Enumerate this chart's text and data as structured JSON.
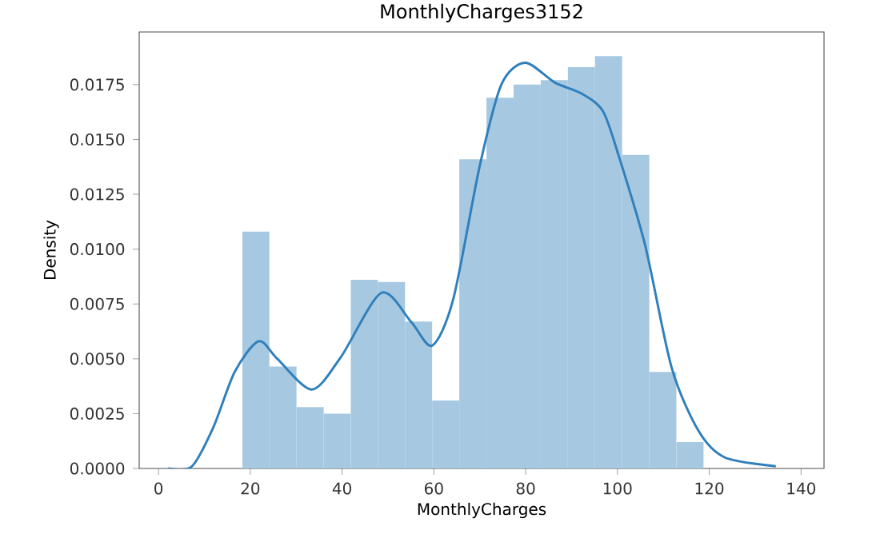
{
  "chart_data": {
    "type": "histogram",
    "title": "MonthlyCharges3152",
    "xlabel": "MonthlyCharges",
    "ylabel": "Density",
    "xlim": [
      -4.2,
      145
    ],
    "xticks": [
      0,
      20,
      40,
      60,
      80,
      100,
      120,
      140
    ],
    "ylim": [
      0,
      0.0199
    ],
    "yticks": [
      {
        "value": 0,
        "label": "0.0000"
      },
      {
        "value": 0.0025,
        "label": "0.0025"
      },
      {
        "value": 0.005,
        "label": "0.0050"
      },
      {
        "value": 0.0075,
        "label": "0.0075"
      },
      {
        "value": 0.01,
        "label": "0.0100"
      },
      {
        "value": 0.0125,
        "label": "0.0125"
      },
      {
        "value": 0.015,
        "label": "0.0150"
      },
      {
        "value": 0.0175,
        "label": "0.0175"
      }
    ],
    "series": [
      {
        "color": "#a6c8e0",
        "bins": [
          18.25,
          24.16,
          30.07,
          35.99,
          41.9,
          47.81,
          53.72,
          59.63,
          65.54,
          71.46,
          77.37,
          83.28,
          89.19,
          95.1,
          101.01,
          106.93,
          112.84,
          118.75
        ],
        "values": [
          0.0108,
          0.00465,
          0.0028,
          0.0025,
          0.0086,
          0.0085,
          0.0067,
          0.0031,
          0.0141,
          0.0169,
          0.0175,
          0.0177,
          0.0183,
          0.0188,
          0.0143,
          0.0044,
          0.0012
        ]
      },
      {
        "type": "line",
        "color": "#2f7fbc",
        "x": [
          2.1,
          7.3,
          12,
          16.6,
          21.8,
          25.9,
          33.4,
          39.8,
          48.5,
          55,
          59.6,
          64.2,
          70,
          74.7,
          79.9,
          86.3,
          92.1,
          96.8,
          100.2,
          106,
          111.8,
          117.7,
          123.4,
          134.5
        ],
        "values": [
          0,
          0.0001,
          0.0019,
          0.0044,
          0.0058,
          0.005,
          0.0036,
          0.0051,
          0.008,
          0.0067,
          0.0056,
          0.0077,
          0.0138,
          0.0175,
          0.0185,
          0.0176,
          0.0171,
          0.0163,
          0.0143,
          0.0102,
          0.0046,
          0.0017,
          0.0005,
          0.0001
        ]
      }
    ]
  }
}
